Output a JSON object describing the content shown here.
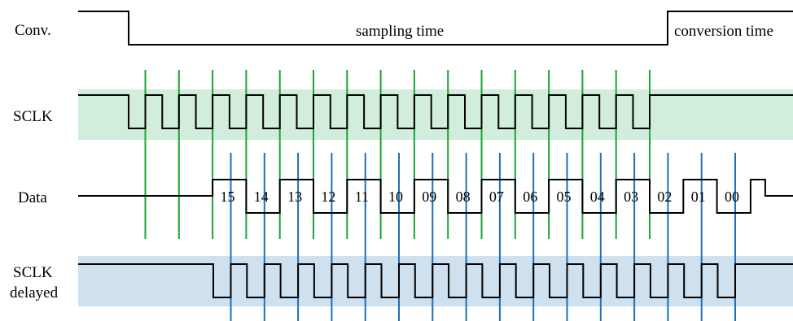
{
  "signals": {
    "conv": "Conv.",
    "sclk": "SCLK",
    "data": "Data",
    "sclk_delayed_line1": "SCLK",
    "sclk_delayed_line2": "delayed"
  },
  "annotations": {
    "sampling": "sampling time",
    "conversion": "conversion time"
  },
  "bits": [
    "15",
    "14",
    "13",
    "12",
    "11",
    "10",
    "09",
    "08",
    "07",
    "06",
    "05",
    "04",
    "03",
    "02",
    "01",
    "00"
  ],
  "colors": {
    "sclk_band": "#d0eedb",
    "delayed_band": "#cfe0ef",
    "sample_marker": "#1aa535",
    "delayed_marker": "#1f6fb5",
    "trace": "#000000"
  }
}
